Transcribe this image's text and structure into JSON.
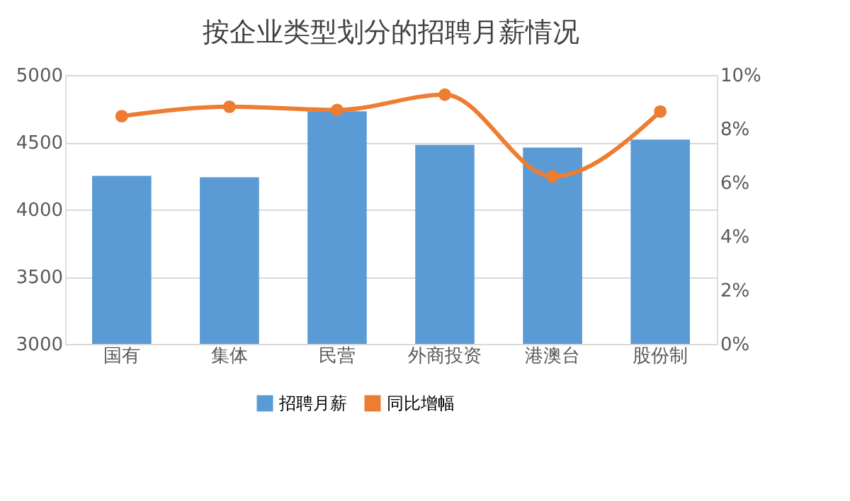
{
  "chart_data": {
    "type": "bar",
    "title": "按企业类型划分的招聘月薪情况",
    "categories": [
      "国有",
      "集体",
      "民营",
      "外商投资",
      "港澳台",
      "股份制"
    ],
    "series": [
      {
        "name": "招聘月薪",
        "type": "bar",
        "color": "#5b9bd5",
        "values": [
          4250,
          4240,
          4730,
          4480,
          4460,
          4520
        ]
      },
      {
        "name": "同比增幅",
        "type": "line",
        "axis": "y2",
        "color": "#ed7d31",
        "marker": "circle",
        "values": [
          8.47,
          8.82,
          8.7,
          9.27,
          6.23,
          8.64
        ]
      }
    ],
    "ylim": [
      3000,
      5000
    ],
    "yticks": [
      3000,
      3500,
      4000,
      4500,
      5000
    ],
    "y2lim": [
      0,
      10
    ],
    "y2ticks": [
      {
        "value": 0,
        "label": "0%"
      },
      {
        "value": 2,
        "label": "2%"
      },
      {
        "value": 4,
        "label": "4%"
      },
      {
        "value": 6,
        "label": "6%"
      },
      {
        "value": 8,
        "label": "8%"
      },
      {
        "value": 10,
        "label": "10%"
      }
    ],
    "grid": "y",
    "legend": "bottom"
  }
}
